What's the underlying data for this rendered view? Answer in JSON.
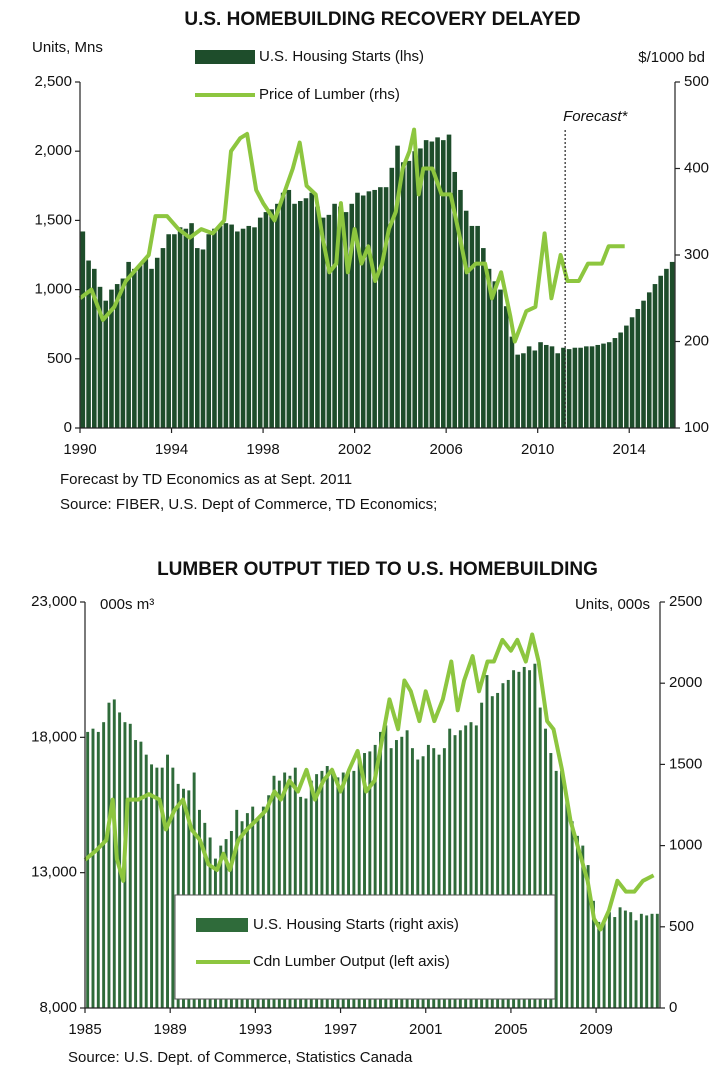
{
  "chart_data": [
    {
      "type": "combo",
      "title": "U.S. HOMEBUILDING RECOVERY DELAYED",
      "ylabel": "Units, Mns",
      "y2label": "$/1000 bd",
      "legend": "top",
      "xlim": [
        1990,
        2016
      ],
      "xticks": [
        1990,
        1994,
        1998,
        2002,
        2006,
        2010,
        2014
      ],
      "ylim": [
        0,
        2500
      ],
      "yticks": [
        0,
        500,
        {
          "value": 1000,
          "label": "1,000"
        },
        {
          "value": 1500,
          "label": "1,500"
        },
        {
          "value": 2000,
          "label": "2,000"
        },
        {
          "value": 2500,
          "label": "2,500"
        }
      ],
      "y2lim": [
        100,
        500
      ],
      "y2ticks": [
        100,
        200,
        300,
        400,
        500
      ],
      "annotations": [
        {
          "text": "Forecast*",
          "x": 2011.2
        }
      ],
      "notes": [
        "Forecast by TD Economics as at Sept. 2011",
        "Source: FIBER, U.S. Dept of Commerce, TD Economics;"
      ],
      "series": [
        {
          "name": "U.S. Housing Starts (lhs)",
          "type": "bar",
          "color": "#1e4d2b",
          "axis": "y",
          "x": [
            1990,
            1990.25,
            1990.5,
            1990.75,
            1991,
            1991.25,
            1991.5,
            1991.75,
            1992,
            1992.25,
            1992.5,
            1992.75,
            1993,
            1993.25,
            1993.5,
            1993.75,
            1994,
            1994.25,
            1994.5,
            1994.75,
            1995,
            1995.25,
            1995.5,
            1995.75,
            1996,
            1996.25,
            1996.5,
            1996.75,
            1997,
            1997.25,
            1997.5,
            1997.75,
            1998,
            1998.25,
            1998.5,
            1998.75,
            1999,
            1999.25,
            1999.5,
            1999.75,
            2000,
            2000.25,
            2000.5,
            2000.75,
            2001,
            2001.25,
            2001.5,
            2001.75,
            2002,
            2002.25,
            2002.5,
            2002.75,
            2003,
            2003.25,
            2003.5,
            2003.75,
            2004,
            2004.25,
            2004.5,
            2004.75,
            2005,
            2005.25,
            2005.5,
            2005.75,
            2006,
            2006.25,
            2006.5,
            2006.75,
            2007,
            2007.25,
            2007.5,
            2007.75,
            2008,
            2008.25,
            2008.5,
            2008.75,
            2009,
            2009.25,
            2009.5,
            2009.75,
            2010,
            2010.25,
            2010.5,
            2010.75,
            2011,
            2011.25,
            2011.5,
            2011.75,
            2012,
            2012.25,
            2012.5,
            2012.75,
            2013,
            2013.25,
            2013.5,
            2013.75,
            2014,
            2014.25,
            2014.5,
            2014.75,
            2015,
            2015.25,
            2015.5,
            2015.75
          ],
          "values": [
            1420,
            1210,
            1150,
            1020,
            920,
            1000,
            1040,
            1080,
            1200,
            1150,
            1180,
            1220,
            1150,
            1230,
            1300,
            1400,
            1400,
            1450,
            1440,
            1480,
            1300,
            1290,
            1400,
            1440,
            1460,
            1480,
            1470,
            1420,
            1440,
            1460,
            1450,
            1520,
            1560,
            1580,
            1620,
            1700,
            1720,
            1620,
            1640,
            1660,
            1700,
            1600,
            1520,
            1540,
            1620,
            1600,
            1560,
            1620,
            1700,
            1680,
            1710,
            1720,
            1740,
            1740,
            1880,
            2040,
            1920,
            1930,
            2000,
            2020,
            2080,
            2070,
            2100,
            2080,
            2120,
            1850,
            1720,
            1570,
            1460,
            1460,
            1300,
            1150,
            1060,
            1000,
            880,
            660,
            530,
            540,
            590,
            560,
            620,
            600,
            590,
            540,
            580,
            570,
            580,
            580,
            590,
            590,
            600,
            610,
            620,
            650,
            690,
            740,
            800,
            860,
            920,
            980,
            1040,
            1100,
            1150,
            1200
          ]
        },
        {
          "name": "Price of Lumber (rhs)",
          "type": "line",
          "color": "#8dc63f",
          "axis": "y2",
          "x": [
            1990.0,
            1990.5,
            1991.0,
            1991.5,
            1992.0,
            1992.5,
            1993.0,
            1993.3,
            1993.8,
            1994.3,
            1994.8,
            1995.3,
            1995.8,
            1996.3,
            1996.6,
            1997.0,
            1997.3,
            1997.7,
            1998.0,
            1998.5,
            1998.9,
            1999.3,
            1999.6,
            1999.9,
            2000.3,
            2000.6,
            2000.9,
            2001.2,
            2001.4,
            2001.7,
            2002.0,
            2002.3,
            2002.6,
            2002.9,
            2003.2,
            2003.5,
            2003.8,
            2004.1,
            2004.4,
            2004.6,
            2004.8,
            2005.0,
            2005.4,
            2005.8,
            2006.2,
            2006.6,
            2006.9,
            2007.3,
            2007.7,
            2008.0,
            2008.4,
            2008.8,
            2009.0,
            2009.5,
            2009.9,
            2010.3,
            2010.6,
            2011.0,
            2011.3,
            2011.8,
            2012.2,
            2012.8,
            2013.1,
            2013.8
          ],
          "values": [
            250,
            260,
            225,
            240,
            270,
            285,
            300,
            345,
            345,
            330,
            320,
            330,
            325,
            340,
            420,
            435,
            440,
            375,
            360,
            340,
            370,
            400,
            430,
            380,
            370,
            320,
            280,
            290,
            360,
            280,
            330,
            290,
            310,
            270,
            290,
            330,
            350,
            400,
            420,
            445,
            370,
            400,
            400,
            370,
            370,
            320,
            280,
            290,
            290,
            250,
            280,
            230,
            200,
            235,
            240,
            325,
            250,
            300,
            270,
            270,
            290,
            290,
            310,
            310
          ]
        }
      ]
    },
    {
      "type": "combo",
      "title": "LUMBER OUTPUT TIED TO U.S. HOMEBUILDING",
      "ylabel": "000s m³",
      "y2label": "Units, 000s",
      "legend": "bottom",
      "xlim": [
        1985,
        2012
      ],
      "xticks": [
        1985,
        1989,
        1993,
        1997,
        2001,
        2005,
        2009
      ],
      "ylim": [
        8000,
        23000
      ],
      "yticks": [
        {
          "value": 8000,
          "label": "8,000"
        },
        {
          "value": 13000,
          "label": "13,000"
        },
        {
          "value": 18000,
          "label": "18,000"
        },
        {
          "value": 23000,
          "label": "23,000"
        }
      ],
      "y2lim": [
        0,
        2500
      ],
      "y2ticks": [
        0,
        500,
        1000,
        1500,
        2000,
        2500
      ],
      "notes": [
        "Source: U.S. Dept. of Commerce, Statistics Canada"
      ],
      "series": [
        {
          "name": "U.S. Housing Starts (right axis)",
          "type": "bar",
          "color": "#2f6b3a",
          "axis": "y2",
          "x": [
            1985,
            1985.25,
            1985.5,
            1985.75,
            1986,
            1986.25,
            1986.5,
            1986.75,
            1987,
            1987.25,
            1987.5,
            1987.75,
            1988,
            1988.25,
            1988.5,
            1988.75,
            1989,
            1989.25,
            1989.5,
            1989.75,
            1990,
            1990.25,
            1990.5,
            1990.75,
            1991,
            1991.25,
            1991.5,
            1991.75,
            1992,
            1992.25,
            1992.5,
            1992.75,
            1993,
            1993.25,
            1993.5,
            1993.75,
            1994,
            1994.25,
            1994.5,
            1994.75,
            1995,
            1995.25,
            1995.5,
            1995.75,
            1996,
            1996.25,
            1996.5,
            1996.75,
            1997,
            1997.25,
            1997.5,
            1997.75,
            1998,
            1998.25,
            1998.5,
            1998.75,
            1999,
            1999.25,
            1999.5,
            1999.75,
            2000,
            2000.25,
            2000.5,
            2000.75,
            2001,
            2001.25,
            2001.5,
            2001.75,
            2002,
            2002.25,
            2002.5,
            2002.75,
            2003,
            2003.25,
            2003.5,
            2003.75,
            2004,
            2004.25,
            2004.5,
            2004.75,
            2005,
            2005.25,
            2005.5,
            2005.75,
            2006,
            2006.25,
            2006.5,
            2006.75,
            2007,
            2007.25,
            2007.5,
            2007.75,
            2008,
            2008.25,
            2008.5,
            2008.75,
            2009,
            2009.25,
            2009.5,
            2009.75,
            2010,
            2010.25,
            2010.5,
            2010.75,
            2011,
            2011.25,
            2011.5,
            2011.75
          ],
          "values": [
            1700,
            1720,
            1700,
            1760,
            1880,
            1900,
            1820,
            1760,
            1750,
            1650,
            1640,
            1560,
            1500,
            1480,
            1480,
            1560,
            1480,
            1380,
            1350,
            1340,
            1450,
            1220,
            1140,
            1050,
            920,
            1000,
            1040,
            1090,
            1220,
            1150,
            1200,
            1240,
            1160,
            1240,
            1310,
            1430,
            1400,
            1450,
            1430,
            1480,
            1300,
            1290,
            1400,
            1440,
            1460,
            1490,
            1470,
            1420,
            1450,
            1460,
            1460,
            1530,
            1570,
            1580,
            1620,
            1700,
            1740,
            1600,
            1650,
            1670,
            1710,
            1600,
            1530,
            1550,
            1620,
            1600,
            1560,
            1600,
            1720,
            1680,
            1710,
            1740,
            1760,
            1740,
            1880,
            2050,
            1920,
            1940,
            2000,
            2020,
            2080,
            2070,
            2100,
            2080,
            2120,
            1850,
            1720,
            1570,
            1460,
            1460,
            1300,
            1150,
            1060,
            1000,
            880,
            660,
            530,
            540,
            590,
            560,
            620,
            600,
            590,
            540,
            580,
            570,
            580,
            580
          ]
        },
        {
          "name": "Cdn Lumber Output (left axis)",
          "type": "line",
          "color": "#8dc63f",
          "axis": "y",
          "x": [
            1985.0,
            1985.5,
            1986.0,
            1986.3,
            1986.5,
            1986.8,
            1987.0,
            1987.5,
            1988.0,
            1988.5,
            1988.8,
            1989.2,
            1989.6,
            1990.0,
            1990.4,
            1990.8,
            1991.2,
            1991.5,
            1991.8,
            1992.2,
            1992.6,
            1993.0,
            1993.5,
            1993.9,
            1994.2,
            1994.6,
            1995.0,
            1995.4,
            1995.8,
            1996.2,
            1996.6,
            1997.0,
            1997.4,
            1997.8,
            1998.2,
            1998.6,
            1998.9,
            1999.3,
            1999.7,
            2000.0,
            2000.3,
            2000.7,
            2001.0,
            2001.4,
            2001.8,
            2002.2,
            2002.5,
            2002.8,
            2003.2,
            2003.5,
            2003.9,
            2004.2,
            2004.6,
            2005.0,
            2005.3,
            2005.7,
            2006.0,
            2006.3,
            2006.7,
            2007.0,
            2007.4,
            2007.8,
            2008.2,
            2008.6,
            2008.9,
            2009.2,
            2009.6,
            2010.0,
            2010.4,
            2010.8,
            2011.2,
            2011.7
          ],
          "values": [
            13470,
            13800,
            14200,
            15700,
            13500,
            12700,
            15700,
            15700,
            15900,
            15700,
            14600,
            15300,
            15700,
            14600,
            14200,
            13300,
            13100,
            13700,
            13100,
            14200,
            14600,
            14900,
            15300,
            16000,
            15700,
            16400,
            16000,
            16800,
            15700,
            16400,
            16800,
            16000,
            16800,
            17500,
            16000,
            16400,
            17700,
            19400,
            18300,
            20100,
            19700,
            18600,
            19700,
            18600,
            19400,
            20800,
            19000,
            20100,
            21000,
            19700,
            20800,
            20800,
            21600,
            21200,
            21600,
            20800,
            21800,
            20800,
            18600,
            18300,
            16800,
            14900,
            13800,
            12700,
            11300,
            10900,
            11600,
            12700,
            12300,
            12300,
            12700,
            12900
          ]
        }
      ]
    }
  ]
}
